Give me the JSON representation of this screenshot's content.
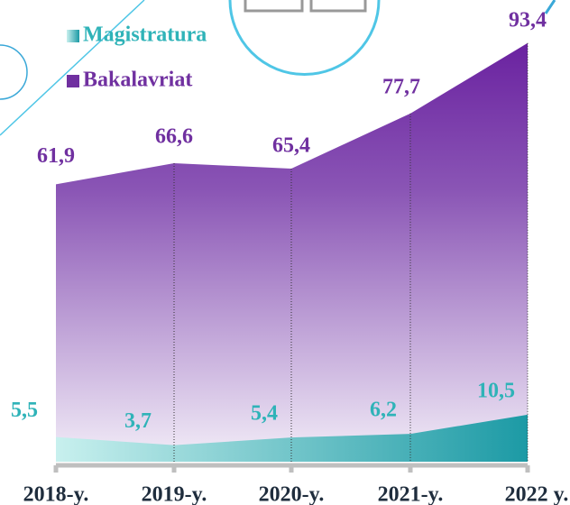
{
  "chart_data": {
    "type": "area",
    "categories": [
      "2018-y.",
      "2019-y.",
      "2020-y.",
      "2021-y.",
      "2022 y."
    ],
    "series": [
      {
        "name": "Magistratura",
        "color": "#2fb3b8",
        "values": [
          5.5,
          3.7,
          5.4,
          6.2,
          10.5
        ],
        "value_labels": [
          "5,5",
          "3,7",
          "5,4",
          "6,2",
          "10,5"
        ]
      },
      {
        "name": "Bakalavriat",
        "color": "#7030a0",
        "values": [
          61.9,
          66.6,
          65.4,
          77.7,
          93.4
        ],
        "value_labels": [
          "61,9",
          "66,6",
          "65,4",
          "77,7",
          "93,4"
        ]
      }
    ],
    "ylim": [
      0,
      100
    ]
  }
}
